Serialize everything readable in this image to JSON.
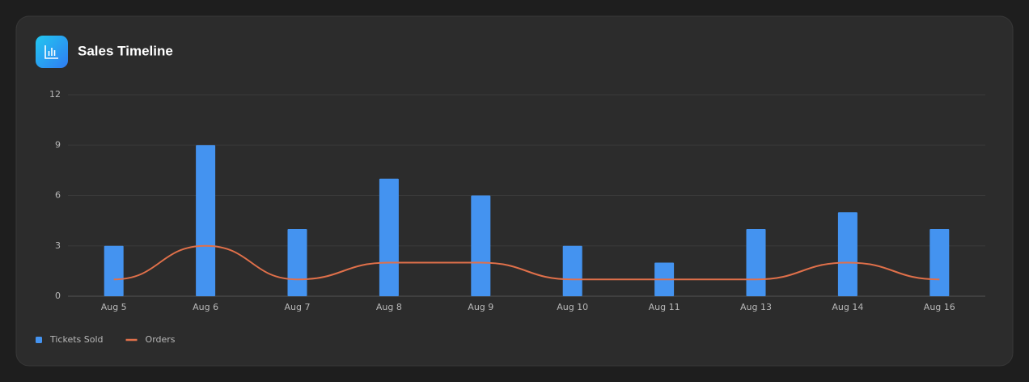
{
  "chart_data": {
    "type": "bar",
    "title": "Sales Timeline",
    "categories": [
      "Aug 5",
      "Aug 6",
      "Aug 7",
      "Aug 8",
      "Aug 9",
      "Aug 10",
      "Aug 11",
      "Aug 13",
      "Aug 14",
      "Aug 16"
    ],
    "series": [
      {
        "name": "Tickets Sold",
        "type": "bar",
        "color": "#4493f0",
        "values": [
          3,
          9,
          4,
          7,
          6,
          3,
          2,
          4,
          5,
          4
        ]
      },
      {
        "name": "Orders",
        "type": "line",
        "color": "#e0704a",
        "values": [
          1,
          3,
          1,
          2,
          2,
          1,
          1,
          1,
          2,
          1
        ]
      }
    ],
    "ylim": [
      0,
      12
    ],
    "yticks": [
      0,
      3,
      6,
      9,
      12
    ],
    "grid": true,
    "legend": "bottom-left"
  }
}
